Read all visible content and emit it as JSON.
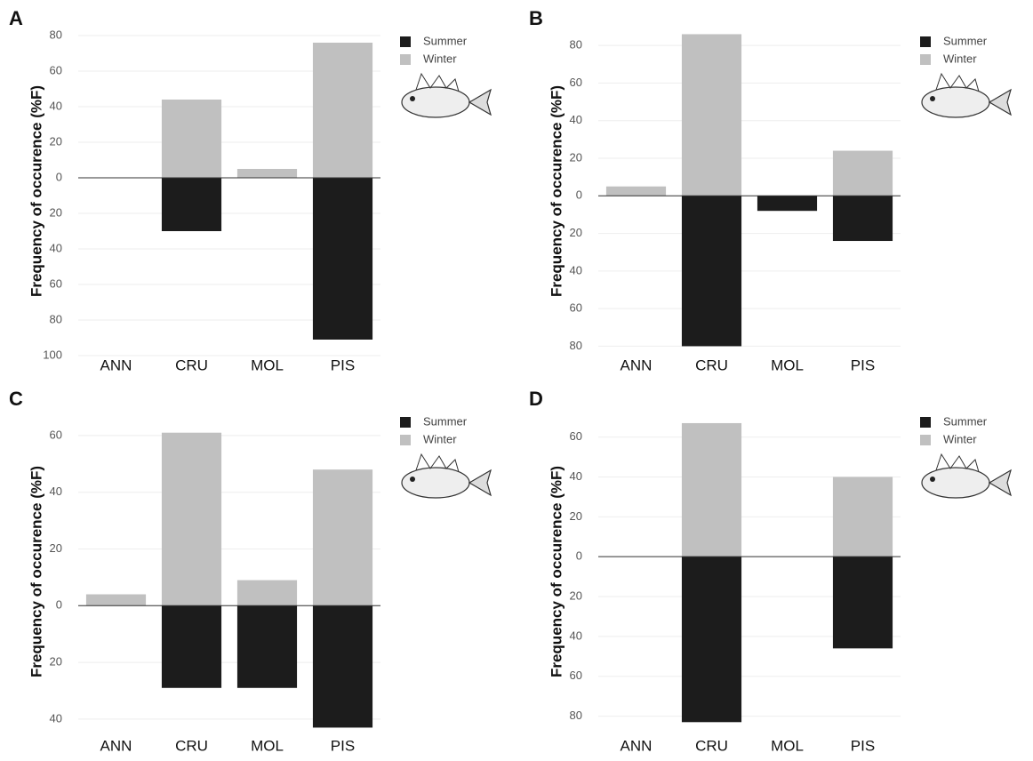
{
  "chart_data": [
    {
      "type": "bar",
      "panel": "A",
      "y_label": "Frequency of occurence (%F)",
      "categories": [
        "ANN",
        "CRU",
        "MOL",
        "PIS"
      ],
      "series": [
        {
          "name": "Summer",
          "color": "#1c1c1c",
          "values": [
            0,
            -30,
            0,
            -91
          ]
        },
        {
          "name": "Winter",
          "color": "#c0c0c0",
          "values": [
            0,
            44,
            5,
            76
          ]
        }
      ],
      "ylim": [
        -100,
        85
      ],
      "yticks": [
        80,
        60,
        40,
        20,
        0,
        {
          "value": -20,
          "label": "20"
        },
        {
          "value": -40,
          "label": "40"
        },
        {
          "value": -60,
          "label": "60"
        },
        {
          "value": -80,
          "label": "80"
        },
        {
          "value": -100,
          "label": "100"
        }
      ],
      "grid": true
    },
    {
      "type": "bar",
      "panel": "B",
      "y_label": "Frequency of occurence (%F)",
      "categories": [
        "ANN",
        "CRU",
        "MOL",
        "PIS"
      ],
      "series": [
        {
          "name": "Summer",
          "color": "#1c1c1c",
          "values": [
            0,
            -80,
            -8,
            -24
          ]
        },
        {
          "name": "Winter",
          "color": "#c0c0c0",
          "values": [
            5,
            86,
            0,
            24
          ]
        }
      ],
      "ylim": [
        -85,
        90
      ],
      "yticks": [
        80,
        60,
        40,
        20,
        0,
        {
          "value": -20,
          "label": "20"
        },
        {
          "value": -40,
          "label": "40"
        },
        {
          "value": -60,
          "label": "60"
        },
        {
          "value": -80,
          "label": "80"
        }
      ],
      "grid": true
    },
    {
      "type": "bar",
      "panel": "C",
      "y_label": "Frequency of occurence (%F)",
      "categories": [
        "ANN",
        "CRU",
        "MOL",
        "PIS"
      ],
      "series": [
        {
          "name": "Summer",
          "color": "#1c1c1c",
          "values": [
            0,
            -29,
            -29,
            -43
          ]
        },
        {
          "name": "Winter",
          "color": "#c0c0c0",
          "values": [
            4,
            61,
            9,
            48
          ]
        }
      ],
      "ylim": [
        -46,
        70
      ],
      "yticks": [
        60,
        40,
        20,
        0,
        {
          "value": -20,
          "label": "20"
        },
        {
          "value": -40,
          "label": "40"
        }
      ],
      "grid": true
    },
    {
      "type": "bar",
      "panel": "D",
      "y_label": "Frequency of occurence (%F)",
      "categories": [
        "ANN",
        "CRU",
        "MOL",
        "PIS"
      ],
      "series": [
        {
          "name": "Summer",
          "color": "#1c1c1c",
          "values": [
            0,
            -83,
            0,
            -46
          ]
        },
        {
          "name": "Winter",
          "color": "#c0c0c0",
          "values": [
            0,
            67,
            0,
            40
          ]
        }
      ],
      "ylim": [
        -90,
        75
      ],
      "yticks": [
        60,
        40,
        20,
        0,
        {
          "value": -20,
          "label": "20"
        },
        {
          "value": -40,
          "label": "40"
        },
        {
          "value": -60,
          "label": "60"
        },
        {
          "value": -80,
          "label": "80"
        }
      ],
      "grid": true
    }
  ]
}
